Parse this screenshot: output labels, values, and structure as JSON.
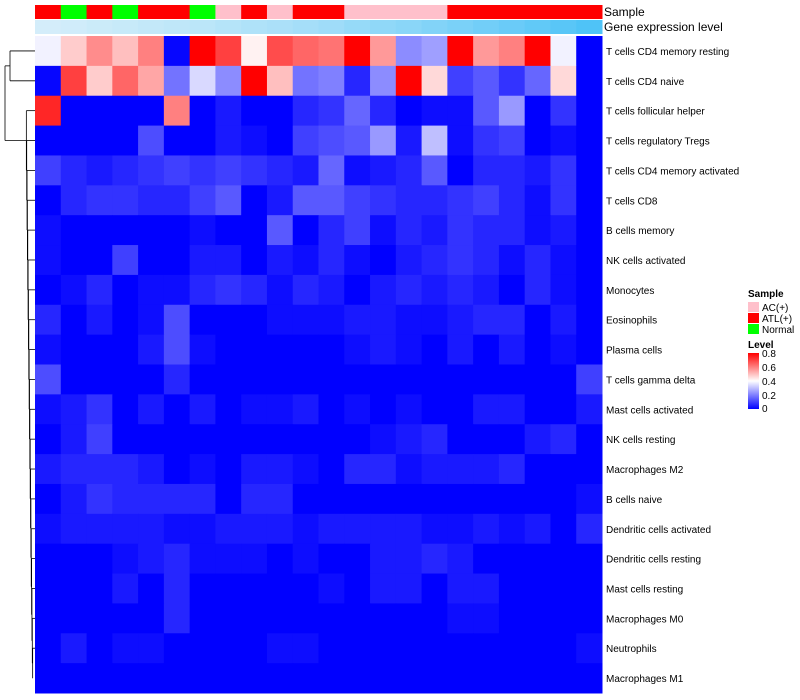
{
  "chart_data": {
    "type": "heatmap",
    "annotation_titles": [
      "Sample",
      "Gene expression level"
    ],
    "sample_groups": [
      "ATL(+)",
      "Normal",
      "ATL(+)",
      "Normal",
      "ATL(+)",
      "ATL(+)",
      "Normal",
      "AC(+)",
      "ATL(+)",
      "AC(+)",
      "ATL(+)",
      "ATL(+)",
      "AC(+)",
      "AC(+)",
      "AC(+)",
      "AC(+)",
      "ATL(+)",
      "ATL(+)",
      "ATL(+)",
      "ATL(+)",
      "ATL(+)",
      "ATL(+)"
    ],
    "expression_level": [
      0.1,
      0.12,
      0.14,
      0.16,
      0.18,
      0.2,
      0.22,
      0.25,
      0.28,
      0.3,
      0.33,
      0.36,
      0.4,
      0.43,
      0.46,
      0.5,
      0.54,
      0.58,
      0.62,
      0.66,
      0.7,
      0.75
    ],
    "rows": [
      "T cells CD4 memory resting",
      "T cells CD4 naive",
      "T cells follicular helper",
      "T cells regulatory  Tregs",
      "T cells CD4 memory activated",
      "T cells CD8",
      "B cells memory",
      "NK cells activated",
      "Monocytes",
      "Eosinophils",
      "Plasma cells",
      "T cells gamma delta",
      "Mast cells activated",
      "NK cells resting",
      "Macrophages M2",
      "B cells naive",
      "Dendritic cells activated",
      "Dendritic cells resting",
      "Mast cells resting",
      "Macrophages M0",
      "Neutrophils",
      "Macrophages M1"
    ],
    "values": [
      [
        0.38,
        0.48,
        0.58,
        0.5,
        0.6,
        0.01,
        0.8,
        0.7,
        0.42,
        0.68,
        0.64,
        0.62,
        0.8,
        0.56,
        0.22,
        0.25,
        0.8,
        0.56,
        0.6,
        0.8,
        0.38,
        0.0
      ],
      [
        0.01,
        0.7,
        0.48,
        0.64,
        0.54,
        0.18,
        0.34,
        0.22,
        0.8,
        0.5,
        0.18,
        0.2,
        0.06,
        0.22,
        0.8,
        0.46,
        0.1,
        0.14,
        0.08,
        0.16,
        0.46,
        0.0
      ],
      [
        0.74,
        0.0,
        0.0,
        0.0,
        0.0,
        0.6,
        0.0,
        0.04,
        0.0,
        0.0,
        0.06,
        0.08,
        0.16,
        0.06,
        0.0,
        0.02,
        0.02,
        0.14,
        0.24,
        0.0,
        0.08,
        0.0
      ],
      [
        0.0,
        0.0,
        0.0,
        0.0,
        0.12,
        0.0,
        0.0,
        0.04,
        0.02,
        0.0,
        0.1,
        0.12,
        0.14,
        0.24,
        0.04,
        0.3,
        0.02,
        0.08,
        0.1,
        0.0,
        0.02,
        0.0
      ],
      [
        0.1,
        0.06,
        0.04,
        0.06,
        0.08,
        0.1,
        0.08,
        0.1,
        0.08,
        0.06,
        0.04,
        0.16,
        0.02,
        0.04,
        0.06,
        0.14,
        0.0,
        0.06,
        0.06,
        0.04,
        0.08,
        0.0
      ],
      [
        0.0,
        0.06,
        0.08,
        0.08,
        0.06,
        0.06,
        0.1,
        0.14,
        0.0,
        0.04,
        0.14,
        0.14,
        0.1,
        0.08,
        0.06,
        0.06,
        0.08,
        0.1,
        0.06,
        0.02,
        0.08,
        0.0
      ],
      [
        0.02,
        0.0,
        0.0,
        0.0,
        0.0,
        0.0,
        0.02,
        0.0,
        0.0,
        0.14,
        0.0,
        0.06,
        0.1,
        0.02,
        0.06,
        0.04,
        0.08,
        0.06,
        0.06,
        0.02,
        0.04,
        0.0
      ],
      [
        0.02,
        0.0,
        0.0,
        0.1,
        0.0,
        0.0,
        0.04,
        0.04,
        0.0,
        0.04,
        0.02,
        0.06,
        0.02,
        0.0,
        0.04,
        0.06,
        0.08,
        0.06,
        0.02,
        0.06,
        0.02,
        0.0
      ],
      [
        0.0,
        0.02,
        0.06,
        0.0,
        0.02,
        0.02,
        0.06,
        0.08,
        0.06,
        0.02,
        0.06,
        0.04,
        0.0,
        0.04,
        0.06,
        0.04,
        0.06,
        0.04,
        0.0,
        0.06,
        0.02,
        0.0
      ],
      [
        0.06,
        0.0,
        0.04,
        0.0,
        0.02,
        0.12,
        0.0,
        0.0,
        0.0,
        0.02,
        0.02,
        0.02,
        0.04,
        0.04,
        0.02,
        0.02,
        0.04,
        0.06,
        0.06,
        0.0,
        0.04,
        0.0
      ],
      [
        0.02,
        0.0,
        0.0,
        0.0,
        0.04,
        0.12,
        0.02,
        0.0,
        0.0,
        0.0,
        0.0,
        0.0,
        0.02,
        0.04,
        0.02,
        0.0,
        0.04,
        0.0,
        0.04,
        0.0,
        0.02,
        0.0
      ],
      [
        0.12,
        0.0,
        0.0,
        0.0,
        0.0,
        0.06,
        0.0,
        0.0,
        0.0,
        0.0,
        0.0,
        0.0,
        0.0,
        0.0,
        0.0,
        0.0,
        0.0,
        0.0,
        0.0,
        0.0,
        0.0,
        0.1
      ],
      [
        0.02,
        0.04,
        0.08,
        0.0,
        0.04,
        0.0,
        0.04,
        0.0,
        0.02,
        0.02,
        0.04,
        0.0,
        0.02,
        0.0,
        0.02,
        0.0,
        0.0,
        0.04,
        0.04,
        0.0,
        0.0,
        0.04
      ],
      [
        0.0,
        0.04,
        0.1,
        0.0,
        0.0,
        0.0,
        0.0,
        0.0,
        0.0,
        0.0,
        0.0,
        0.0,
        0.0,
        0.02,
        0.04,
        0.06,
        0.0,
        0.0,
        0.0,
        0.04,
        0.06,
        0.0
      ],
      [
        0.04,
        0.06,
        0.06,
        0.06,
        0.04,
        0.0,
        0.02,
        0.0,
        0.04,
        0.04,
        0.02,
        0.0,
        0.06,
        0.06,
        0.02,
        0.04,
        0.04,
        0.04,
        0.06,
        0.0,
        0.0,
        0.0
      ],
      [
        0.0,
        0.04,
        0.08,
        0.06,
        0.06,
        0.06,
        0.06,
        0.0,
        0.06,
        0.06,
        0.0,
        0.0,
        0.0,
        0.0,
        0.0,
        0.0,
        0.0,
        0.0,
        0.0,
        0.0,
        0.0,
        0.02
      ],
      [
        0.02,
        0.04,
        0.04,
        0.04,
        0.04,
        0.02,
        0.02,
        0.04,
        0.04,
        0.04,
        0.02,
        0.04,
        0.04,
        0.04,
        0.04,
        0.02,
        0.02,
        0.04,
        0.02,
        0.04,
        0.0,
        0.06
      ],
      [
        0.0,
        0.0,
        0.0,
        0.02,
        0.04,
        0.06,
        0.02,
        0.02,
        0.02,
        0.0,
        0.02,
        0.0,
        0.0,
        0.04,
        0.04,
        0.06,
        0.04,
        0.0,
        0.0,
        0.0,
        0.0,
        0.0
      ],
      [
        0.0,
        0.0,
        0.0,
        0.04,
        0.0,
        0.06,
        0.0,
        0.0,
        0.0,
        0.0,
        0.0,
        0.02,
        0.0,
        0.04,
        0.04,
        0.0,
        0.04,
        0.04,
        0.0,
        0.0,
        0.0,
        0.0
      ],
      [
        0.0,
        0.0,
        0.0,
        0.0,
        0.0,
        0.06,
        0.0,
        0.0,
        0.0,
        0.0,
        0.0,
        0.0,
        0.0,
        0.0,
        0.0,
        0.0,
        0.02,
        0.02,
        0.0,
        0.0,
        0.0,
        0.0
      ],
      [
        0.0,
        0.04,
        0.0,
        0.02,
        0.02,
        0.0,
        0.0,
        0.0,
        0.0,
        0.02,
        0.02,
        0.0,
        0.0,
        0.0,
        0.0,
        0.0,
        0.0,
        0.0,
        0.0,
        0.0,
        0.0,
        0.02
      ],
      [
        0.0,
        0.0,
        0.0,
        0.0,
        0.0,
        0.0,
        0.0,
        0.0,
        0.0,
        0.0,
        0.0,
        0.0,
        0.0,
        0.0,
        0.0,
        0.0,
        0.0,
        0.0,
        0.0,
        0.0,
        0.0,
        0.0
      ]
    ],
    "color_scale": {
      "low": "#0000ff",
      "mid": "#ffffff",
      "high": "#ff0000",
      "domain": [
        0,
        0.4,
        0.8
      ]
    },
    "expression_scale": {
      "low": "#e8f4fa",
      "high": "#4fc3f7"
    },
    "sample_colors": {
      "AC(+)": "#ffc0cb",
      "ATL(+)": "#ff0000",
      "Normal": "#00ff00"
    },
    "legend": {
      "sample_title": "Sample",
      "sample_items": [
        "AC(+)",
        "ATL(+)",
        "Normal"
      ],
      "level_title": "Level",
      "level_ticks": [
        "0.8",
        "0.6",
        "0.4",
        "0.2",
        "0"
      ]
    }
  }
}
